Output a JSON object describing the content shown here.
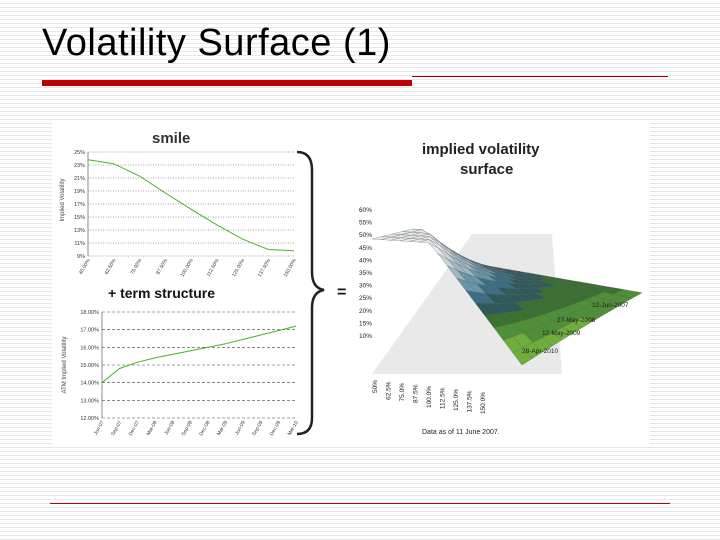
{
  "slide": {
    "title": "Volatility Surface (1)"
  },
  "chart_data": [
    {
      "type": "line",
      "title": "smile",
      "xlabel": "",
      "ylabel": "Implied Volatility",
      "ylim": [
        9,
        25
      ],
      "yticks": [
        "25%",
        "23%",
        "21%",
        "19%",
        "17%",
        "15%",
        "13%",
        "11%",
        "9%"
      ],
      "categories": [
        "40.00%",
        "62.50%",
        "75.00%",
        "87.50%",
        "100.00%",
        "112.50%",
        "125.00%",
        "137.50%",
        "150.00%"
      ],
      "values": [
        23.8,
        23.2,
        21.3,
        18.7,
        16.2,
        13.8,
        11.6,
        10.0,
        9.8
      ],
      "line_color": "#4caf2a",
      "grid": true
    },
    {
      "type": "line",
      "title": "+ term structure",
      "xlabel": "",
      "ylabel": "ATM Implied Volatility",
      "ylim": [
        12,
        18
      ],
      "yticks": [
        "18.00%",
        "17.00%",
        "16.00%",
        "15.00%",
        "14.00%",
        "13.00%",
        "12.00%"
      ],
      "categories": [
        "Jun-07",
        "Sep-07",
        "Dec-07",
        "Mar-08",
        "Jun-08",
        "Sep-08",
        "Dec-08",
        "Mar-09",
        "Jun-09",
        "Sep-09",
        "Dec-09",
        "Mar-10"
      ],
      "values": [
        14.0,
        14.8,
        15.15,
        15.4,
        15.6,
        15.8,
        16.0,
        16.2,
        16.45,
        16.7,
        16.95,
        17.2
      ],
      "line_color": "#4caf2a",
      "grid": true
    },
    {
      "type": "surface",
      "title": "implied volatility surface",
      "z_ticks": [
        "60%",
        "55%",
        "50%",
        "45%",
        "40%",
        "35%",
        "30%",
        "25%",
        "20%",
        "15%",
        "10%"
      ],
      "x_ticks": [
        "50%",
        "62.5%",
        "75.0%",
        "87.5%",
        "100.0%",
        "112.5%",
        "125.0%",
        "137.5%",
        "150.0%"
      ],
      "depth_ticks": [
        "12-Jun-2007",
        "27-May-2008",
        "12-May-2009",
        "28-Apr-2010"
      ],
      "equals_sign": "=",
      "note": "Data as of 11 June 2007."
    }
  ]
}
